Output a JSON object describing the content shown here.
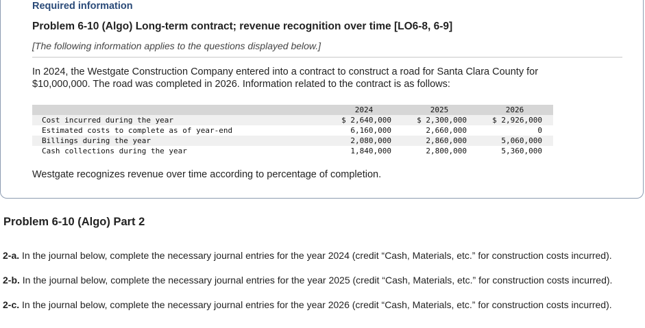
{
  "required_info": "Required information",
  "problem_title": "Problem 6-10 (Algo) Long-term contract; revenue recognition over time [LO6-8, 6-9]",
  "subnote": "[The following information applies to the questions displayed below.]",
  "intro": "In 2024, the Westgate Construction Company entered into a contract to construct a road for Santa Clara County for $10,000,000. The road was completed in 2026. Information related to the contract is as follows:",
  "table": {
    "headers": [
      "2024",
      "2025",
      "2026"
    ],
    "rows": [
      {
        "label": "Cost incurred during the year",
        "values": [
          "$ 2,640,000",
          "$ 2,300,000",
          "$ 2,926,000"
        ]
      },
      {
        "label": "Estimated costs to complete as of year-end",
        "values": [
          "6,160,000",
          "2,660,000",
          "0"
        ]
      },
      {
        "label": "Billings during the year",
        "values": [
          "2,080,000",
          "2,860,000",
          "5,060,000"
        ]
      },
      {
        "label": "Cash collections during the year",
        "values": [
          "1,840,000",
          "2,800,000",
          "5,360,000"
        ]
      }
    ]
  },
  "method_note": "Westgate recognizes revenue over time according to percentage of completion.",
  "part_title": "Problem 6-10 (Algo) Part 2",
  "instructions": [
    {
      "tag": "2-a.",
      "text": " In the journal below, complete the necessary journal entries for the year 2024 (credit “Cash, Materials, etc.” for construction costs incurred)."
    },
    {
      "tag": "2-b.",
      "text": " In the journal below, complete the necessary journal entries for the year 2025 (credit “Cash, Materials, etc.” for construction costs incurred)."
    },
    {
      "tag": "2-c.",
      "text": " In the journal below, complete the necessary journal entries for the year 2026 (credit “Cash, Materials, etc.” for construction costs incurred)."
    }
  ]
}
